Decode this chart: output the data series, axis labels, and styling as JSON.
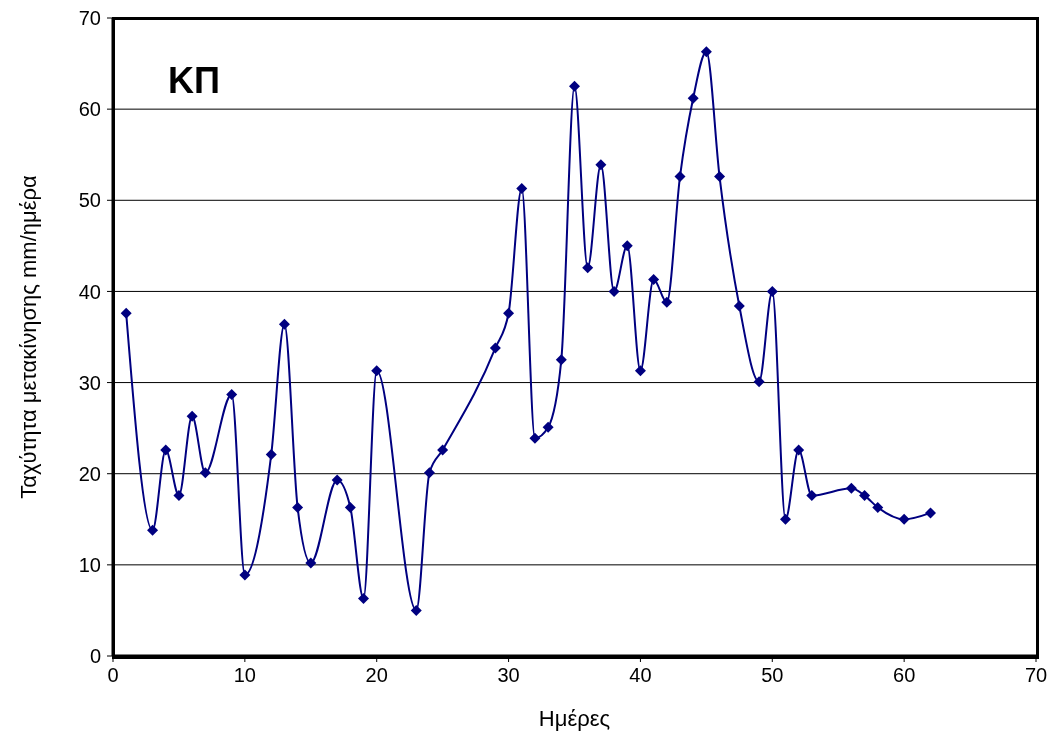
{
  "chart_data": {
    "type": "line",
    "title": "ΚΠ",
    "xlabel": "Ημέρες",
    "ylabel": "Ταχύτητα μετακίνησης mm/ημέρα",
    "x": [
      1,
      3,
      4,
      5,
      6,
      7,
      9,
      10,
      12,
      13,
      14,
      15,
      17,
      18,
      19,
      20,
      23,
      24,
      25,
      29,
      30,
      31,
      32,
      33,
      34,
      35,
      36,
      37,
      38,
      39,
      40,
      41,
      42,
      43,
      44,
      45,
      46,
      47.5,
      49,
      50,
      51,
      52,
      53,
      56,
      57,
      58,
      60,
      62
    ],
    "series": [
      {
        "color": "#000080",
        "values": [
          37.6,
          13.8,
          22.6,
          17.6,
          26.3,
          20.1,
          28.7,
          8.9,
          22.1,
          36.4,
          16.3,
          10.2,
          19.3,
          16.3,
          6.3,
          31.3,
          5.0,
          20.1,
          22.6,
          33.8,
          37.6,
          51.3,
          23.9,
          25.1,
          32.5,
          62.5,
          42.6,
          53.9,
          40.0,
          45.0,
          31.3,
          41.3,
          38.8,
          52.6,
          61.2,
          66.3,
          52.6,
          38.4,
          30.1,
          40.0,
          15.0,
          22.6,
          17.6,
          18.4,
          17.6,
          16.3,
          15.0,
          15.7
        ]
      }
    ],
    "xlim": [
      0,
      70
    ],
    "xticks": [
      0,
      10,
      20,
      30,
      40,
      50,
      60,
      70
    ],
    "ylim": [
      0,
      70
    ],
    "yticks": [
      0,
      10,
      20,
      30,
      40,
      50,
      60,
      70
    ],
    "grid": "y",
    "marker": "diamond",
    "line_style": "solid"
  }
}
